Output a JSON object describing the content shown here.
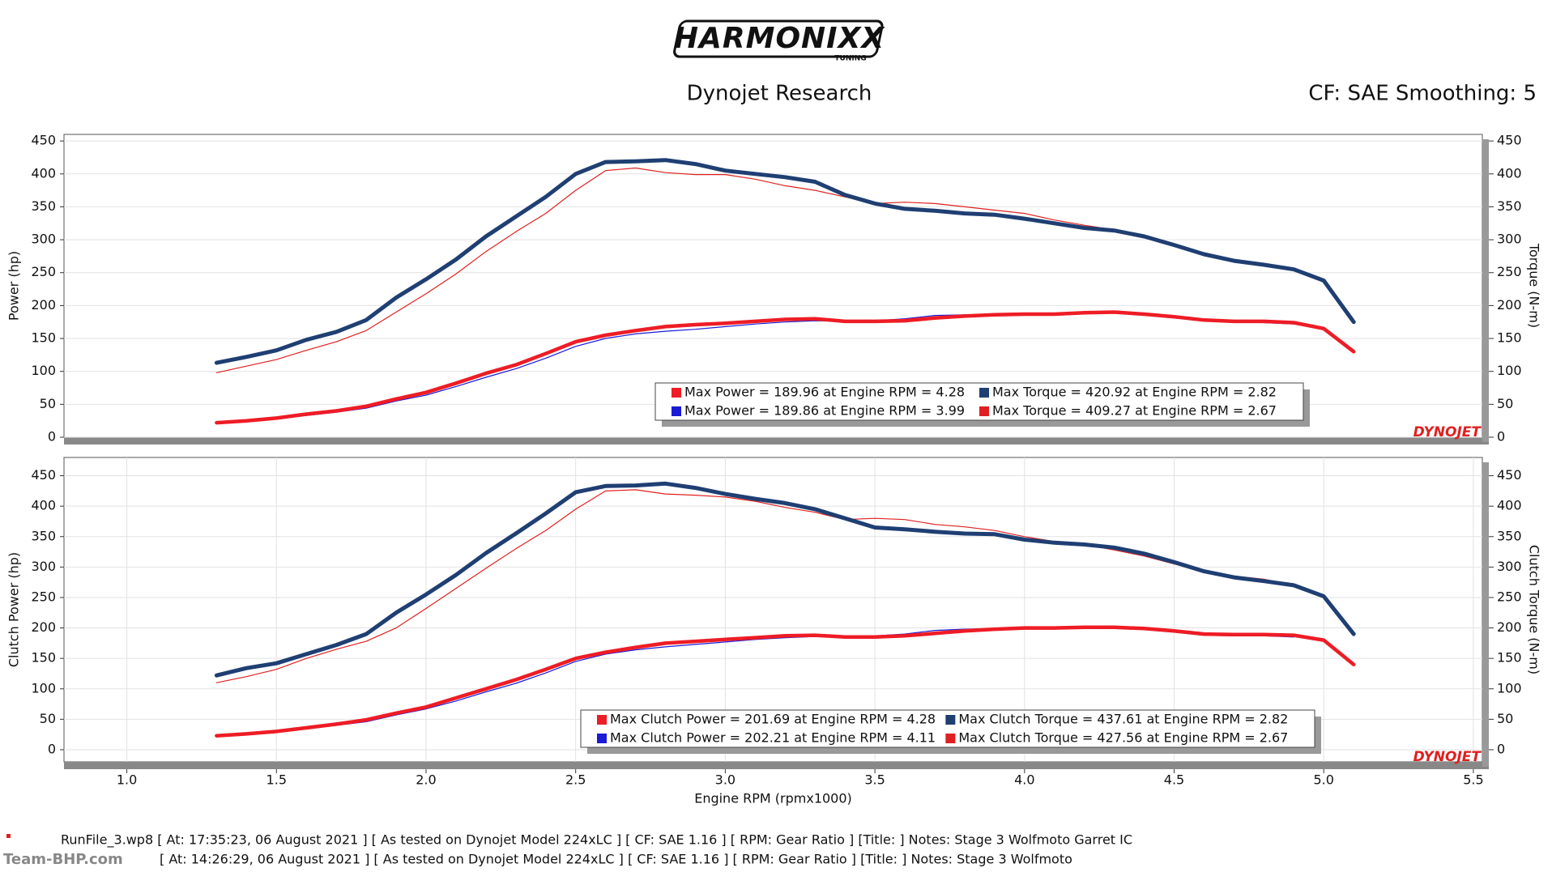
{
  "header": {
    "logo": "HARMONIXX",
    "logo_sub": "TUNING",
    "subtitle": "Dynojet Research",
    "settings": "CF: SAE Smoothing: 5",
    "brand": "DYNOJET"
  },
  "chart_data": [
    {
      "type": "line",
      "ylabel": "Power (hp)",
      "y2label": "Torque (N-m)",
      "x": [
        1.3,
        1.4,
        1.5,
        1.6,
        1.7,
        1.8,
        1.9,
        2.0,
        2.1,
        2.2,
        2.3,
        2.4,
        2.5,
        2.6,
        2.7,
        2.8,
        2.9,
        3.0,
        3.1,
        3.2,
        3.3,
        3.4,
        3.5,
        3.6,
        3.7,
        3.8,
        3.9,
        4.0,
        4.1,
        4.2,
        4.3,
        4.4,
        4.5,
        4.6,
        4.7,
        4.8,
        4.9,
        5.0,
        5.1
      ],
      "xlim": [
        0.79,
        5.53
      ],
      "ylim": [
        0,
        460
      ],
      "yticks": [
        0,
        50,
        100,
        150,
        200,
        250,
        300,
        350,
        400,
        450
      ],
      "y2lim": [
        0,
        460
      ],
      "y2ticks": [
        0,
        50,
        100,
        150,
        200,
        250,
        300,
        350,
        400,
        450
      ],
      "grid": true,
      "series": [
        {
          "name": "Max Power = 189.96 at Engine RPM = 4.28",
          "color": "#ee1c25",
          "values": [
            22,
            25,
            29,
            35,
            40,
            47,
            58,
            68,
            82,
            97,
            110,
            127,
            145,
            155,
            162,
            168,
            171,
            173,
            176,
            179,
            180,
            176,
            176,
            177,
            181,
            184,
            186,
            187,
            187,
            189,
            190,
            187,
            183,
            178,
            176,
            176,
            174,
            165,
            130
          ]
        },
        {
          "name": "Max Power = 189.86 at Engine RPM = 3.99",
          "color": "#1a1ad8",
          "values": [
            22,
            24,
            28,
            33,
            38,
            44,
            55,
            64,
            77,
            91,
            104,
            120,
            138,
            150,
            157,
            161,
            164,
            168,
            172,
            175,
            177,
            176,
            177,
            180,
            185,
            186,
            187,
            188,
            188,
            189,
            189,
            186,
            181,
            177,
            175,
            174,
            172,
            null,
            null
          ]
        },
        {
          "name": "Max Torque = 420.92 at Engine RPM = 2.82",
          "color": "#1f3f73",
          "axis": "y2",
          "values": [
            113,
            122,
            132,
            148,
            160,
            178,
            212,
            240,
            270,
            305,
            335,
            365,
            400,
            418,
            419,
            421,
            415,
            405,
            400,
            395,
            388,
            368,
            355,
            347,
            344,
            340,
            338,
            332,
            325,
            318,
            314,
            305,
            292,
            278,
            268,
            262,
            255,
            238,
            175
          ]
        },
        {
          "name": "Max Torque = 409.27 at Engine RPM = 2.67",
          "color": "#e02020",
          "axis": "y2",
          "values": [
            98,
            108,
            118,
            132,
            145,
            162,
            190,
            218,
            248,
            282,
            312,
            340,
            375,
            405,
            409,
            402,
            399,
            399,
            392,
            382,
            375,
            365,
            355,
            357,
            355,
            350,
            345,
            340,
            330,
            322,
            315,
            305,
            292,
            278,
            268,
            262,
            255,
            null,
            null
          ]
        }
      ]
    },
    {
      "type": "line",
      "ylabel": "Clutch Power (hp)",
      "y2label": "Clutch Torque (N-m)",
      "xlabel": "Engine RPM (rpmx1000)",
      "x": [
        1.3,
        1.4,
        1.5,
        1.6,
        1.7,
        1.8,
        1.9,
        2.0,
        2.1,
        2.2,
        2.3,
        2.4,
        2.5,
        2.6,
        2.7,
        2.8,
        2.9,
        3.0,
        3.1,
        3.2,
        3.3,
        3.4,
        3.5,
        3.6,
        3.7,
        3.8,
        3.9,
        4.0,
        4.1,
        4.2,
        4.3,
        4.4,
        4.5,
        4.6,
        4.7,
        4.8,
        4.9,
        5.0,
        5.1
      ],
      "xlim": [
        0.79,
        5.53
      ],
      "xticks": [
        {
          "value": 1,
          "label": "1.0"
        },
        1.5,
        {
          "value": 2,
          "label": "2.0"
        },
        2.5,
        {
          "value": 3,
          "label": "3.0"
        },
        3.5,
        {
          "value": 4,
          "label": "4.0"
        },
        4.5,
        {
          "value": 5,
          "label": "5.0"
        },
        5.5
      ],
      "ylim": [
        -20,
        480
      ],
      "yticks": [
        0,
        50,
        100,
        150,
        200,
        250,
        300,
        350,
        400,
        450
      ],
      "y2lim": [
        -20,
        480
      ],
      "y2ticks": [
        0,
        50,
        100,
        150,
        200,
        250,
        300,
        350,
        400,
        450
      ],
      "grid": true,
      "series": [
        {
          "name": "Max Clutch Power = 201.69 at Engine RPM = 4.28",
          "color": "#ee1c25",
          "values": [
            23,
            26,
            30,
            36,
            42,
            49,
            60,
            70,
            85,
            100,
            115,
            132,
            150,
            160,
            168,
            175,
            178,
            181,
            184,
            187,
            188,
            185,
            185,
            187,
            191,
            195,
            198,
            200,
            200,
            201,
            201,
            199,
            195,
            190,
            189,
            189,
            188,
            180,
            140
          ]
        },
        {
          "name": "Max Clutch Power = 202.21 at Engine RPM = 4.11",
          "color": "#1a1ad8",
          "values": [
            23,
            25,
            29,
            34,
            40,
            46,
            57,
            67,
            80,
            95,
            109,
            126,
            145,
            157,
            164,
            169,
            173,
            177,
            181,
            184,
            186,
            186,
            187,
            190,
            196,
            198,
            199,
            200,
            201,
            202,
            201,
            198,
            193,
            188,
            187,
            187,
            185,
            null,
            null
          ]
        },
        {
          "name": "Max Clutch Torque = 437.61 at Engine RPM = 2.82",
          "color": "#1f3f73",
          "axis": "y2",
          "values": [
            122,
            134,
            142,
            157,
            172,
            190,
            225,
            255,
            287,
            323,
            355,
            388,
            423,
            433,
            434,
            437,
            430,
            420,
            412,
            405,
            395,
            380,
            365,
            362,
            358,
            355,
            354,
            345,
            340,
            337,
            332,
            322,
            308,
            293,
            283,
            277,
            270,
            252,
            190
          ]
        },
        {
          "name": "Max Clutch Torque = 427.56 at Engine RPM = 2.67",
          "color": "#e02020",
          "axis": "y2",
          "values": [
            110,
            120,
            132,
            150,
            165,
            178,
            200,
            232,
            265,
            298,
            330,
            360,
            395,
            425,
            427,
            420,
            418,
            415,
            408,
            398,
            390,
            378,
            380,
            378,
            370,
            366,
            360,
            350,
            342,
            337,
            328,
            318,
            305,
            294,
            285,
            280,
            270,
            null,
            null
          ]
        }
      ]
    }
  ],
  "footer": {
    "line1": "RunFile_3.wp8 [ At: 17:35:23, 06 August 2021 ] [ As tested on Dynojet Model 224xLC ] [ CF: SAE 1.16 ] [ RPM: Gear Ratio ] [Title: ]  Notes: Stage 3 Wolfmoto Garret IC",
    "line2": "[ At: 14:26:29, 06 August 2021 ] [ As tested on Dynojet Model 224xLC ] [ CF: SAE 1.16 ] [ RPM: Gear Ratio ] [Title: ]  Notes: Stage 3 Wolfmoto",
    "watermark": "Team-BHP.com"
  }
}
